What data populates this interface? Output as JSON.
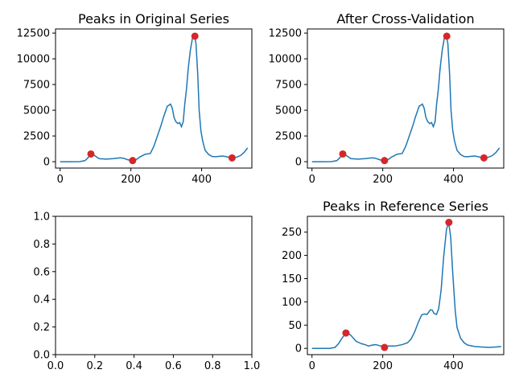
{
  "chart_data": [
    {
      "type": "line",
      "title": "Peaks in Original Series",
      "xlim": [
        -13,
        542
      ],
      "ylim": [
        -620,
        12900
      ],
      "xticks": [
        0,
        200,
        400
      ],
      "yticks": [
        0,
        2500,
        5000,
        7500,
        10000,
        12500
      ],
      "series": [
        {
          "color": "#1f77b4",
          "x": [
            0,
            30,
            55,
            70,
            78,
            85,
            90,
            97,
            110,
            130,
            150,
            170,
            180,
            190,
            200,
            205,
            215,
            225,
            240,
            255,
            265,
            275,
            285,
            292,
            297,
            303,
            308,
            312,
            317,
            322,
            327,
            333,
            338,
            343,
            348,
            352,
            357,
            362,
            368,
            374,
            380,
            384,
            389,
            393,
            398,
            403,
            410,
            420,
            430,
            440,
            450,
            460,
            470,
            480,
            490,
            500,
            510,
            520,
            530
          ],
          "y": [
            0,
            0,
            5,
            100,
            350,
            700,
            780,
            600,
            300,
            250,
            300,
            380,
            330,
            200,
            120,
            110,
            200,
            450,
            720,
            800,
            1500,
            2500,
            3500,
            4300,
            4800,
            5400,
            5500,
            5600,
            5200,
            4300,
            3900,
            3700,
            3800,
            3400,
            3900,
            5500,
            7000,
            9000,
            10800,
            12000,
            12200,
            11500,
            8500,
            5000,
            3000,
            2000,
            1100,
            700,
            500,
            480,
            520,
            550,
            480,
            400,
            370,
            450,
            600,
            900,
            1350
          ]
        }
      ],
      "peaks": {
        "color": "#d62728",
        "x": [
          87,
          205,
          381,
          486
        ],
        "y": [
          750,
          110,
          12200,
          370
        ]
      }
    },
    {
      "type": "line",
      "title": "After Cross-Validation",
      "xlim": [
        -13,
        542
      ],
      "ylim": [
        -620,
        12900
      ],
      "xticks": [
        0,
        200,
        400
      ],
      "yticks": [
        0,
        2500,
        5000,
        7500,
        10000,
        12500
      ],
      "series": [
        {
          "color": "#1f77b4",
          "x": [
            0,
            30,
            55,
            70,
            78,
            85,
            90,
            97,
            110,
            130,
            150,
            170,
            180,
            190,
            200,
            205,
            215,
            225,
            240,
            255,
            265,
            275,
            285,
            292,
            297,
            303,
            308,
            312,
            317,
            322,
            327,
            333,
            338,
            343,
            348,
            352,
            357,
            362,
            368,
            374,
            380,
            384,
            389,
            393,
            398,
            403,
            410,
            420,
            430,
            440,
            450,
            460,
            470,
            480,
            490,
            500,
            510,
            520,
            530
          ],
          "y": [
            0,
            0,
            5,
            100,
            350,
            700,
            780,
            600,
            300,
            250,
            300,
            380,
            330,
            200,
            120,
            110,
            200,
            450,
            720,
            800,
            1500,
            2500,
            3500,
            4300,
            4800,
            5400,
            5500,
            5600,
            5200,
            4300,
            3900,
            3700,
            3800,
            3400,
            3900,
            5500,
            7000,
            9000,
            10800,
            12000,
            12200,
            11500,
            8500,
            5000,
            3000,
            2000,
            1100,
            700,
            500,
            480,
            520,
            550,
            480,
            400,
            370,
            450,
            600,
            900,
            1350
          ]
        }
      ],
      "peaks": {
        "color": "#d62728",
        "x": [
          87,
          205,
          381,
          486
        ],
        "y": [
          750,
          110,
          12200,
          370
        ]
      }
    },
    {
      "type": "line",
      "title": "",
      "xlim": [
        0,
        1
      ],
      "ylim": [
        0,
        1
      ],
      "xticks": [
        0.0,
        0.2,
        0.4,
        0.6,
        0.8,
        1.0
      ],
      "yticks": [
        0.0,
        0.2,
        0.4,
        0.6,
        0.8,
        1.0
      ],
      "series": [],
      "peaks": null
    },
    {
      "type": "line",
      "title": "Peaks in Reference Series",
      "xlim": [
        -13,
        542
      ],
      "ylim": [
        -13.5,
        284
      ],
      "xticks": [
        0,
        200,
        400
      ],
      "yticks": [
        0,
        50,
        100,
        150,
        200,
        250
      ],
      "series": [
        {
          "color": "#1f77b4",
          "x": [
            0,
            50,
            65,
            75,
            85,
            95,
            100,
            110,
            125,
            140,
            150,
            160,
            170,
            180,
            195,
            205,
            215,
            235,
            255,
            270,
            280,
            290,
            300,
            310,
            318,
            325,
            335,
            340,
            345,
            352,
            358,
            365,
            372,
            380,
            386,
            392,
            398,
            405,
            410,
            420,
            430,
            440,
            460,
            480,
            500,
            520,
            535
          ],
          "y": [
            0,
            0,
            2,
            10,
            22,
            32,
            34,
            28,
            15,
            10,
            8,
            5,
            7,
            8,
            5,
            4,
            5,
            5,
            8,
            12,
            20,
            35,
            55,
            72,
            74,
            73,
            83,
            82,
            75,
            73,
            85,
            125,
            195,
            255,
            272,
            240,
            160,
            80,
            45,
            22,
            12,
            7,
            4,
            3,
            2,
            3,
            4
          ]
        }
      ],
      "peaks": {
        "color": "#d62728",
        "x": [
          96,
          205,
          387
        ],
        "y": [
          33,
          2,
          271
        ]
      }
    }
  ]
}
